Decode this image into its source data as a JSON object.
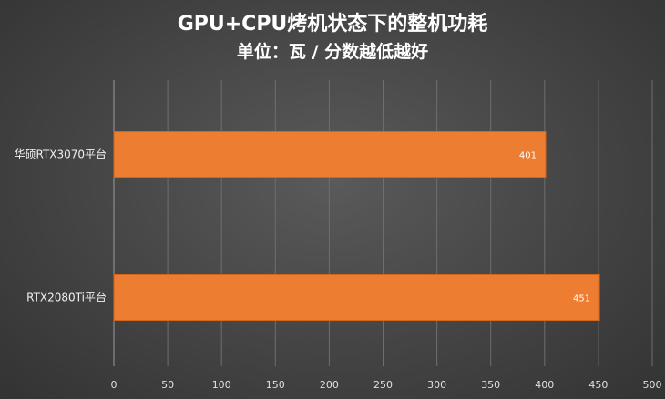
{
  "chart_data": {
    "type": "bar",
    "orientation": "horizontal",
    "title": "GPU+CPU烤机状态下的整机功耗",
    "subtitle": "单位：瓦 / 分数越低越好",
    "categories": [
      "华硕RTX3070平台",
      "RTX2080Ti平台"
    ],
    "values": [
      401,
      451
    ],
    "data_labels": [
      "401",
      "451"
    ],
    "xlim": [
      0,
      500
    ],
    "xticks": [
      0,
      50,
      100,
      150,
      200,
      250,
      300,
      350,
      400,
      450,
      500
    ],
    "grid": "vertical",
    "legend": "none",
    "bar_color": "#ed7d31"
  }
}
